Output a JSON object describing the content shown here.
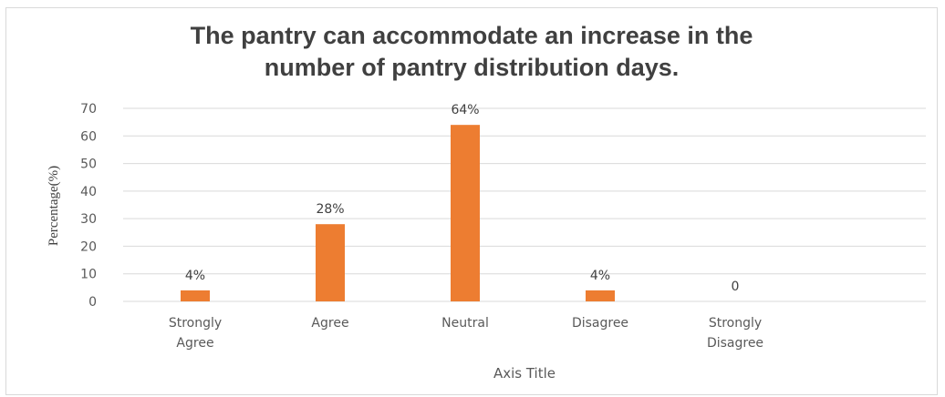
{
  "chart_data": {
    "type": "bar",
    "title_lines": [
      "The pantry can accommodate an increase in the",
      "number of pantry distribution days."
    ],
    "categories": [
      [
        "Strongly",
        "Agree"
      ],
      [
        "Agree"
      ],
      [
        "Neutral"
      ],
      [
        "Disagree"
      ],
      [
        "Strongly",
        "Disagree"
      ]
    ],
    "values": [
      4,
      28,
      64,
      4,
      0
    ],
    "data_labels": [
      "4%",
      "28%",
      "64%",
      "4%",
      "0"
    ],
    "xlabel": "Axis Title",
    "ylabel": "Percentage(%)",
    "ylim": [
      0,
      70
    ],
    "yticks": [
      0,
      10,
      20,
      30,
      40,
      50,
      60,
      70
    ],
    "grid": true,
    "bar_color": "#ed7d31",
    "grid_color": "#d9d9d9"
  }
}
